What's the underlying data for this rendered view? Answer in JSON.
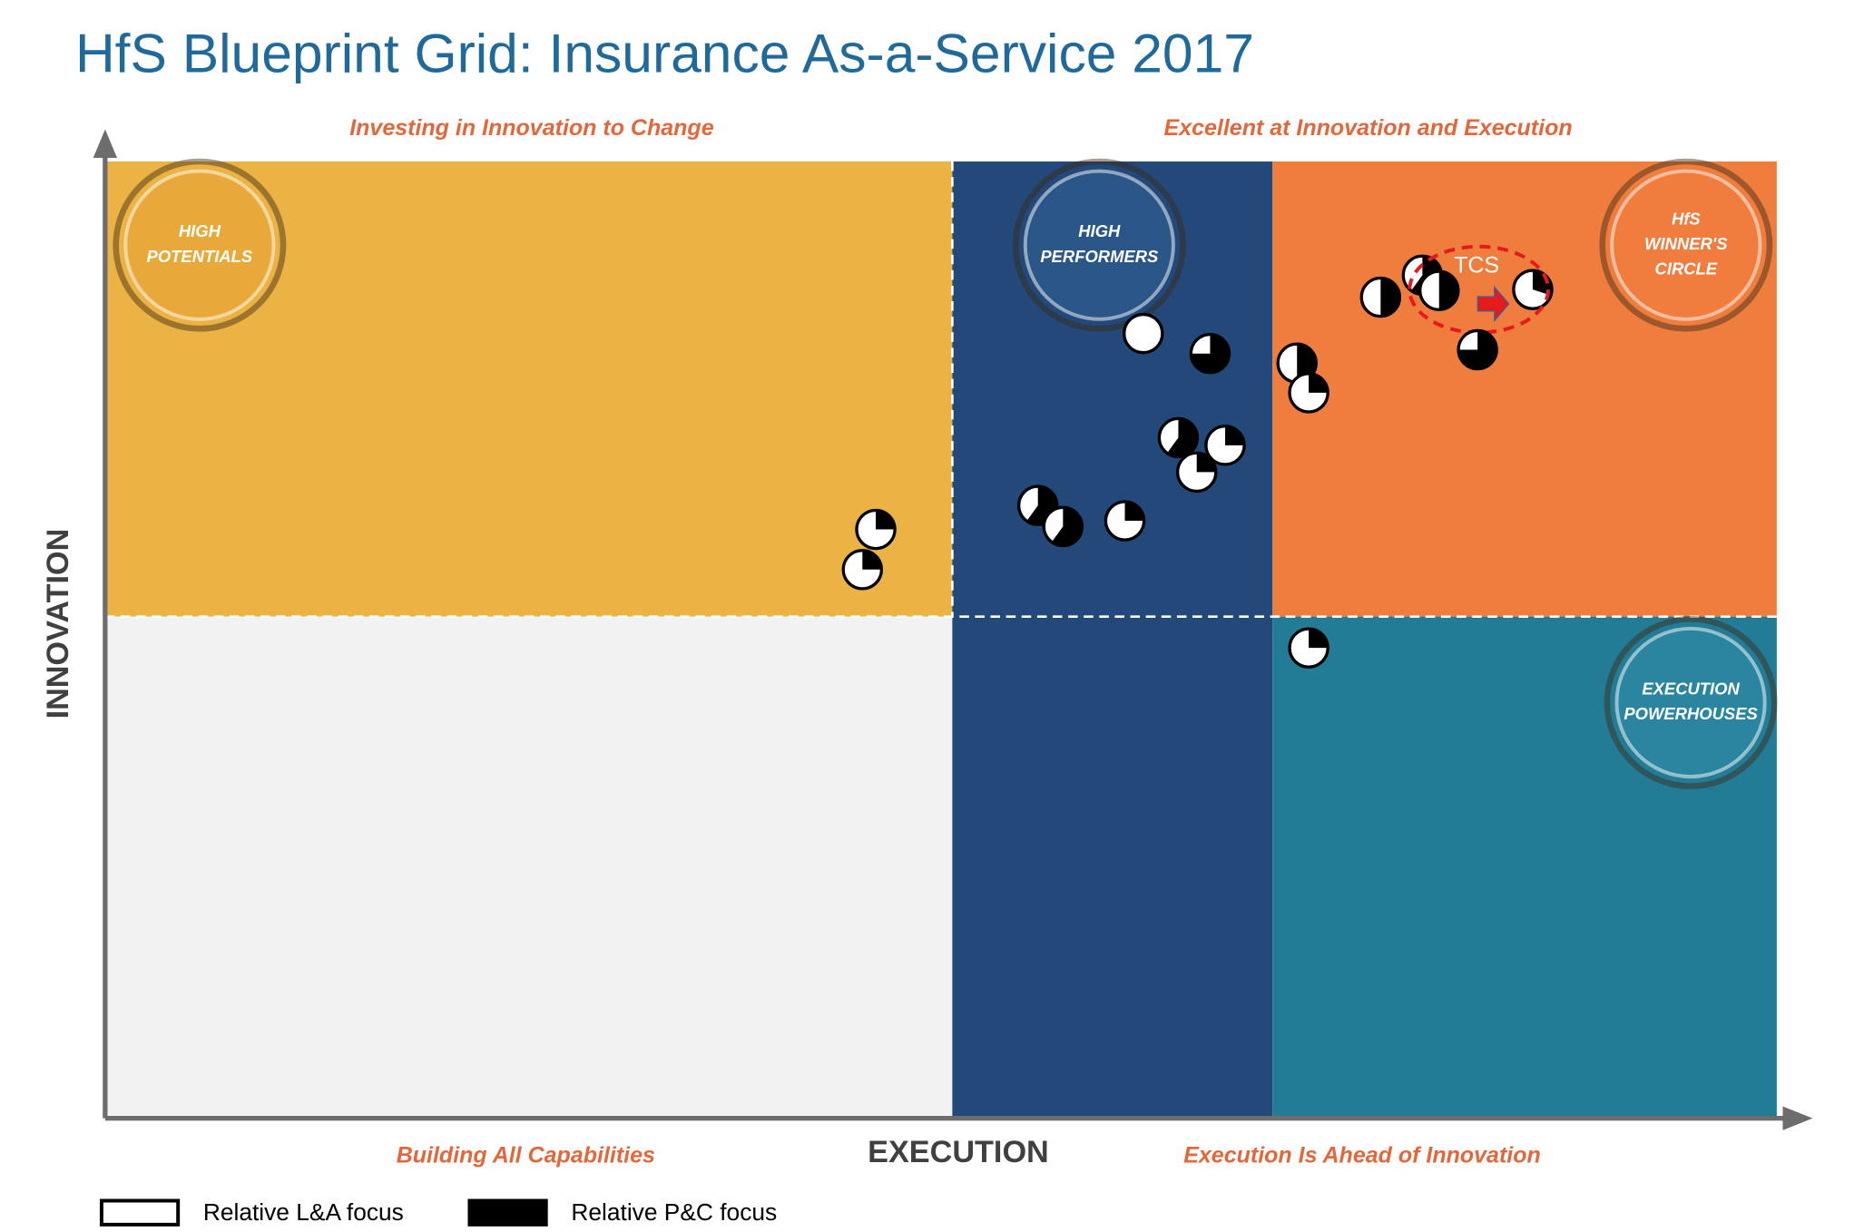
{
  "chart_data": {
    "type": "scatter",
    "title": "HfS Blueprint Grid: Insurance As-a-Service 2017",
    "x_label": "EXECUTION",
    "y_label": "INNOVATION",
    "quadrant_captions": [
      "Investing in Innovation to Change",
      "Excellent at Innovation and Execution",
      "Building All Capabilities",
      "Execution Is Ahead of Innovation"
    ],
    "badges": [
      [
        "HIGH",
        "POTENTIALS"
      ],
      [
        "HIGH",
        "PERFORMERS"
      ],
      [
        "HfS",
        "WINNER'S",
        "CIRCLE"
      ],
      [
        "EXECUTION",
        "POWERHOUSES"
      ]
    ],
    "xlim": [
      0,
      100
    ],
    "ylim": [
      0,
      100
    ],
    "x": [
      46.1,
      45.3,
      62.1,
      66.1,
      71.3,
      72.0,
      64.2,
      67.0,
      65.3,
      55.8,
      57.3,
      61.0,
      76.3,
      78.8,
      79.8,
      85.4,
      82.1,
      72.0
    ],
    "y": [
      61.5,
      57.3,
      82.0,
      79.9,
      78.9,
      75.8,
      71.1,
      70.3,
      67.5,
      64.0,
      61.8,
      62.4,
      85.8,
      88.1,
      86.5,
      86.6,
      80.3,
      49.1
    ],
    "pc_share": [
      0.25,
      0.25,
      0,
      0.75,
      0.5,
      0.25,
      0.6,
      0.25,
      0.25,
      0.6,
      0.6,
      0.25,
      0.5,
      0.6,
      0.5,
      0.3,
      0.75,
      0.25
    ],
    "annotation": {
      "text": "TCS",
      "point": 15
    },
    "legend": [
      {
        "label": "Relative L&A focus",
        "color": "#ffffff"
      },
      {
        "label": "Relative P&C focus",
        "color": "#000000"
      }
    ]
  }
}
